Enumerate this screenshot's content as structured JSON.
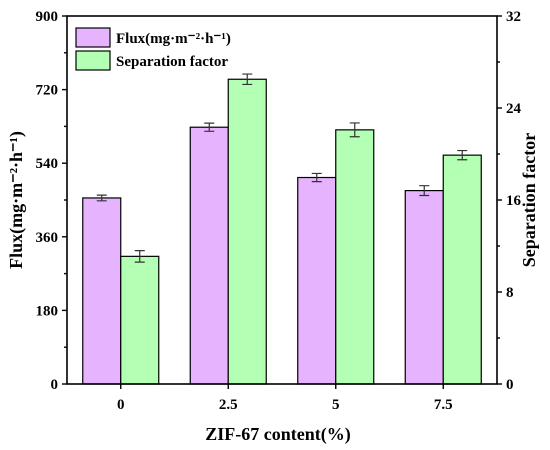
{
  "chart_data": {
    "type": "bar",
    "xlabel": "ZIF-67 content(%)",
    "ylabel_left": "Flux(mg·m⁻²·h⁻¹)",
    "ylabel_right": "Separation factor",
    "categories": [
      "0",
      "2.5",
      "5",
      "7.5"
    ],
    "ylim_left": [
      0,
      900
    ],
    "yticks_left": [
      "0",
      "180",
      "360",
      "540",
      "720",
      "900"
    ],
    "ylim_right": [
      0,
      32
    ],
    "yticks_right": [
      "0",
      "8",
      "16",
      "24",
      "32"
    ],
    "legend_position": "top-left",
    "series": [
      {
        "name": "Flux(mg·m⁻²·h⁻¹)",
        "axis": "left",
        "color": "#e6b3ff",
        "values": [
          455,
          628,
          505,
          473
        ],
        "errors": [
          7,
          10,
          10,
          12
        ]
      },
      {
        "name": "Separation factor",
        "axis": "right",
        "color": "#b3ffb3",
        "values": [
          11.1,
          26.5,
          22.1,
          19.9
        ],
        "errors": [
          0.5,
          0.45,
          0.6,
          0.4
        ]
      }
    ]
  }
}
